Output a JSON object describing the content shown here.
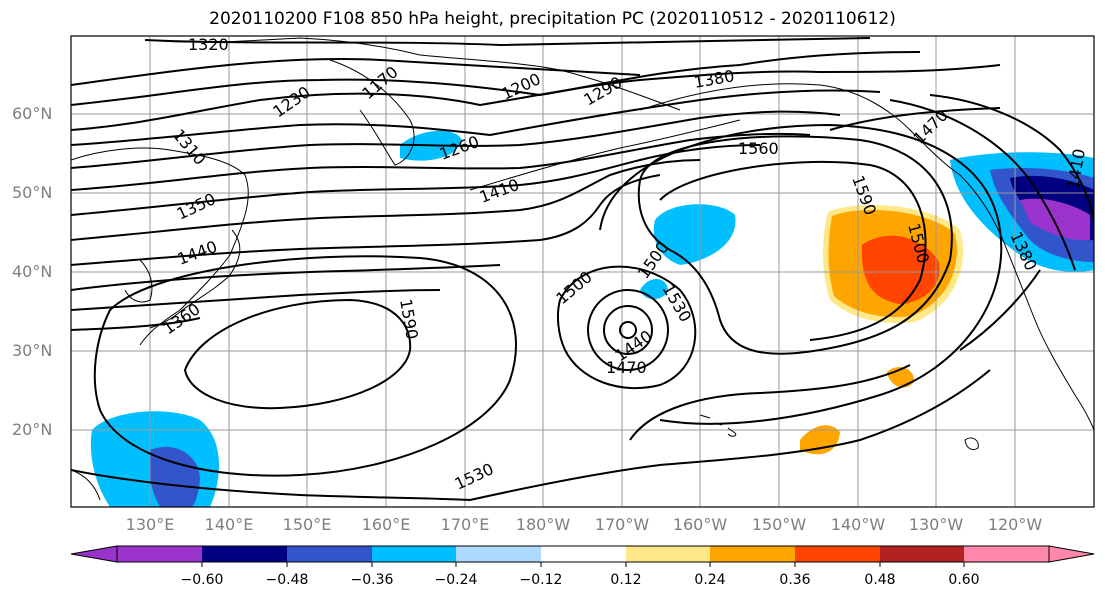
{
  "title": "2020110200 F108 850 hPa height, precipitation PC (2020110512 - 2020110612)",
  "lat_labels": [
    "60°N",
    "50°N",
    "40°N",
    "30°N",
    "20°N"
  ],
  "lon_labels": [
    "130°E",
    "140°E",
    "150°E",
    "160°E",
    "170°E",
    "180°W",
    "170°W",
    "160°W",
    "150°W",
    "140°W",
    "130°W",
    "120°W"
  ],
  "contour_labels": [
    "1320",
    "1170",
    "1230",
    "1200",
    "1290",
    "1380",
    "1310",
    "1260",
    "1470",
    "1560",
    "1410",
    "1350",
    "1590",
    "1440",
    "1500",
    "1500",
    "1590",
    "1380",
    "1360",
    "1500",
    "1530",
    "1440",
    "1470",
    "1530",
    "1410"
  ],
  "colorbar": {
    "colors": [
      "#9933cc",
      "#000080",
      "#3355cc",
      "#00bfff",
      "#add8ff",
      "#ffffff",
      "#ffe888",
      "#ffa500",
      "#ff4500",
      "#b22222",
      "#ff88aa"
    ],
    "ticks": [
      "−0.60",
      "−0.48",
      "−0.36",
      "−0.24",
      "−0.12",
      "0.12",
      "0.24",
      "0.36",
      "0.48",
      "0.60"
    ]
  }
}
